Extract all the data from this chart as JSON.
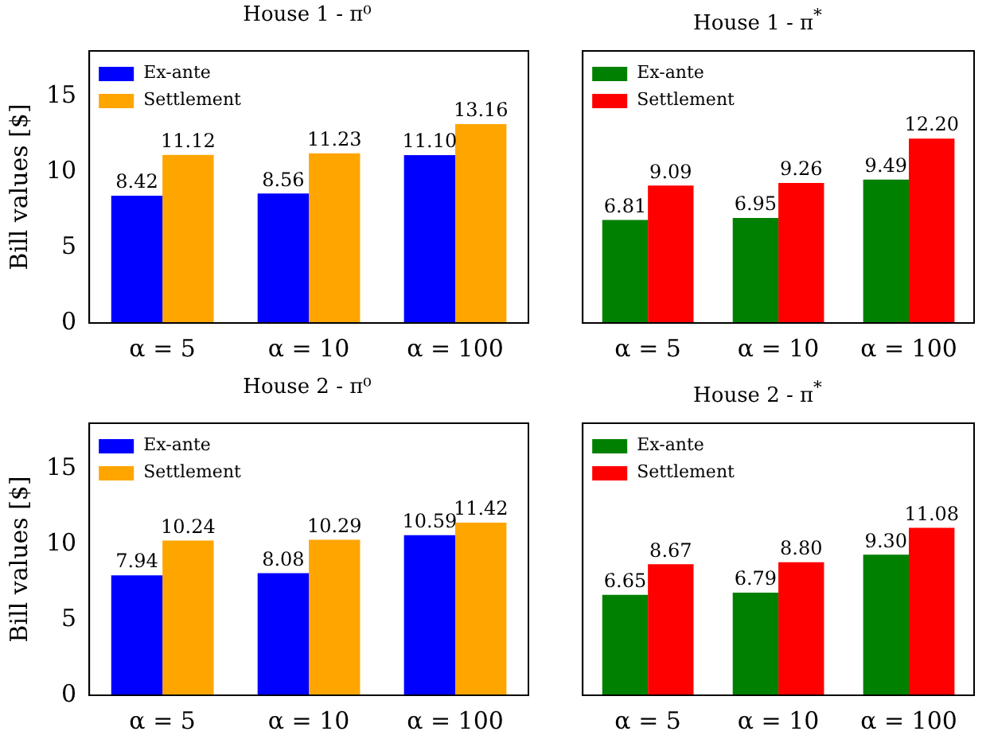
{
  "chart_data": [
    {
      "type": "bar",
      "title": "House 1 - π⁰",
      "ylabel": "Bill values [$]",
      "categories": [
        "α = 5",
        "α = 10",
        "α = 100"
      ],
      "ylim": [
        0,
        18
      ],
      "yticks": [
        0,
        5,
        10,
        15
      ],
      "grid": false,
      "legend": "top left",
      "series": [
        {
          "name": "Ex-ante",
          "color": "#0000ff",
          "values": [
            8.42,
            8.56,
            11.1
          ],
          "value_labels": [
            "8.42",
            "8.56",
            "11.10"
          ]
        },
        {
          "name": "Settlement",
          "color": "#ffa500",
          "values": [
            11.12,
            11.23,
            13.16
          ],
          "value_labels": [
            "11.12",
            "11.23",
            "13.16"
          ]
        }
      ]
    },
    {
      "type": "bar",
      "title": "House 1 - π$^{*}$",
      "categories": [
        "α = 5",
        "α = 10",
        "α = 100"
      ],
      "ylim": [
        0,
        18
      ],
      "yticks": [
        0,
        5,
        10,
        15
      ],
      "tick_labels": "x",
      "grid": false,
      "legend": "top left",
      "series": [
        {
          "name": "Ex-ante",
          "color": "#008000",
          "values": [
            6.81,
            6.95,
            9.49
          ],
          "value_labels": [
            "6.81",
            "6.95",
            "9.49"
          ]
        },
        {
          "name": "Settlement",
          "color": "#ff0000",
          "values": [
            9.09,
            9.26,
            12.2
          ],
          "value_labels": [
            "9.09",
            "9.26",
            "12.20"
          ]
        }
      ]
    },
    {
      "type": "bar",
      "title": "House 2 - π⁰",
      "ylabel": "Bill values [$]",
      "categories": [
        "α = 5",
        "α = 10",
        "α = 100"
      ],
      "ylim": [
        0,
        18
      ],
      "yticks": [
        0,
        5,
        10,
        15
      ],
      "grid": false,
      "legend": "top left",
      "series": [
        {
          "name": "Ex-ante",
          "color": "#0000ff",
          "values": [
            7.94,
            8.08,
            10.59
          ],
          "value_labels": [
            "7.94",
            "8.08",
            "10.59"
          ]
        },
        {
          "name": "Settlement",
          "color": "#ffa500",
          "values": [
            10.24,
            10.29,
            11.42
          ],
          "value_labels": [
            "10.24",
            "10.29",
            "11.42"
          ]
        }
      ]
    },
    {
      "type": "bar",
      "title": "House 2 - π$^{*}$",
      "categories": [
        "α = 5",
        "α = 10",
        "α = 100"
      ],
      "ylim": [
        0,
        18
      ],
      "yticks": [
        0,
        5,
        10,
        15
      ],
      "tick_labels": "x",
      "grid": false,
      "legend": "top left",
      "series": [
        {
          "name": "Ex-ante",
          "color": "#008000",
          "values": [
            6.65,
            6.79,
            9.3
          ],
          "value_labels": [
            "6.65",
            "6.79",
            "9.30"
          ]
        },
        {
          "name": "Settlement",
          "color": "#ff0000",
          "values": [
            8.67,
            8.8,
            11.08
          ],
          "value_labels": [
            "8.67",
            "8.80",
            "11.08"
          ]
        }
      ]
    }
  ]
}
